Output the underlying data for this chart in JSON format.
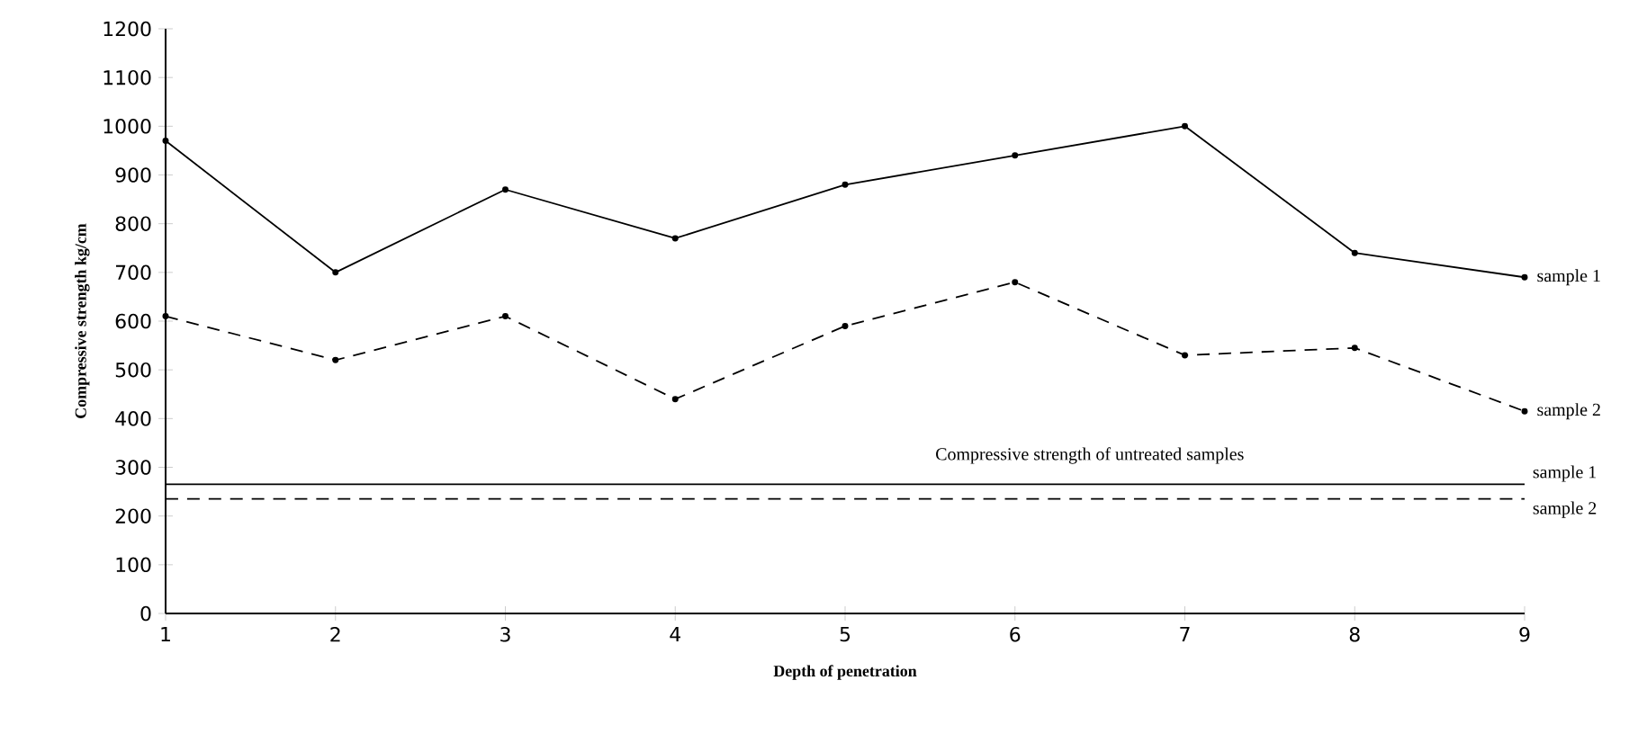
{
  "chart_data": {
    "type": "line",
    "xlabel": "Depth of penetration",
    "ylabel": "Compressive strength kg/cm",
    "x": [
      1,
      2,
      3,
      4,
      5,
      6,
      7,
      8,
      9
    ],
    "xlim": [
      1,
      9
    ],
    "xticks": [
      1,
      2,
      3,
      4,
      5,
      6,
      7,
      8,
      9
    ],
    "ylim": [
      0,
      1200
    ],
    "yticks": [
      0,
      100,
      200,
      300,
      400,
      500,
      600,
      700,
      800,
      900,
      1000,
      1100,
      1200
    ],
    "grid": false,
    "marker": "circle",
    "series": [
      {
        "name": "sample 1",
        "color": "#000000",
        "line_style": "solid",
        "values": [
          970,
          700,
          870,
          770,
          880,
          940,
          1000,
          740,
          690
        ]
      },
      {
        "name": "sample 2",
        "color": "#000000",
        "line_style": "dashed",
        "values": [
          610,
          520,
          610,
          440,
          590,
          680,
          530,
          545,
          415
        ]
      }
    ],
    "ref_lines": [
      {
        "axis": "y",
        "value": 265,
        "label": "sample 1",
        "color": "#000000",
        "line_style": "solid"
      },
      {
        "axis": "y",
        "value": 235,
        "label": "sample 2",
        "color": "#000000",
        "line_style": "dashed"
      }
    ],
    "annotations": [
      "Compressive strength of untreated samples"
    ]
  }
}
